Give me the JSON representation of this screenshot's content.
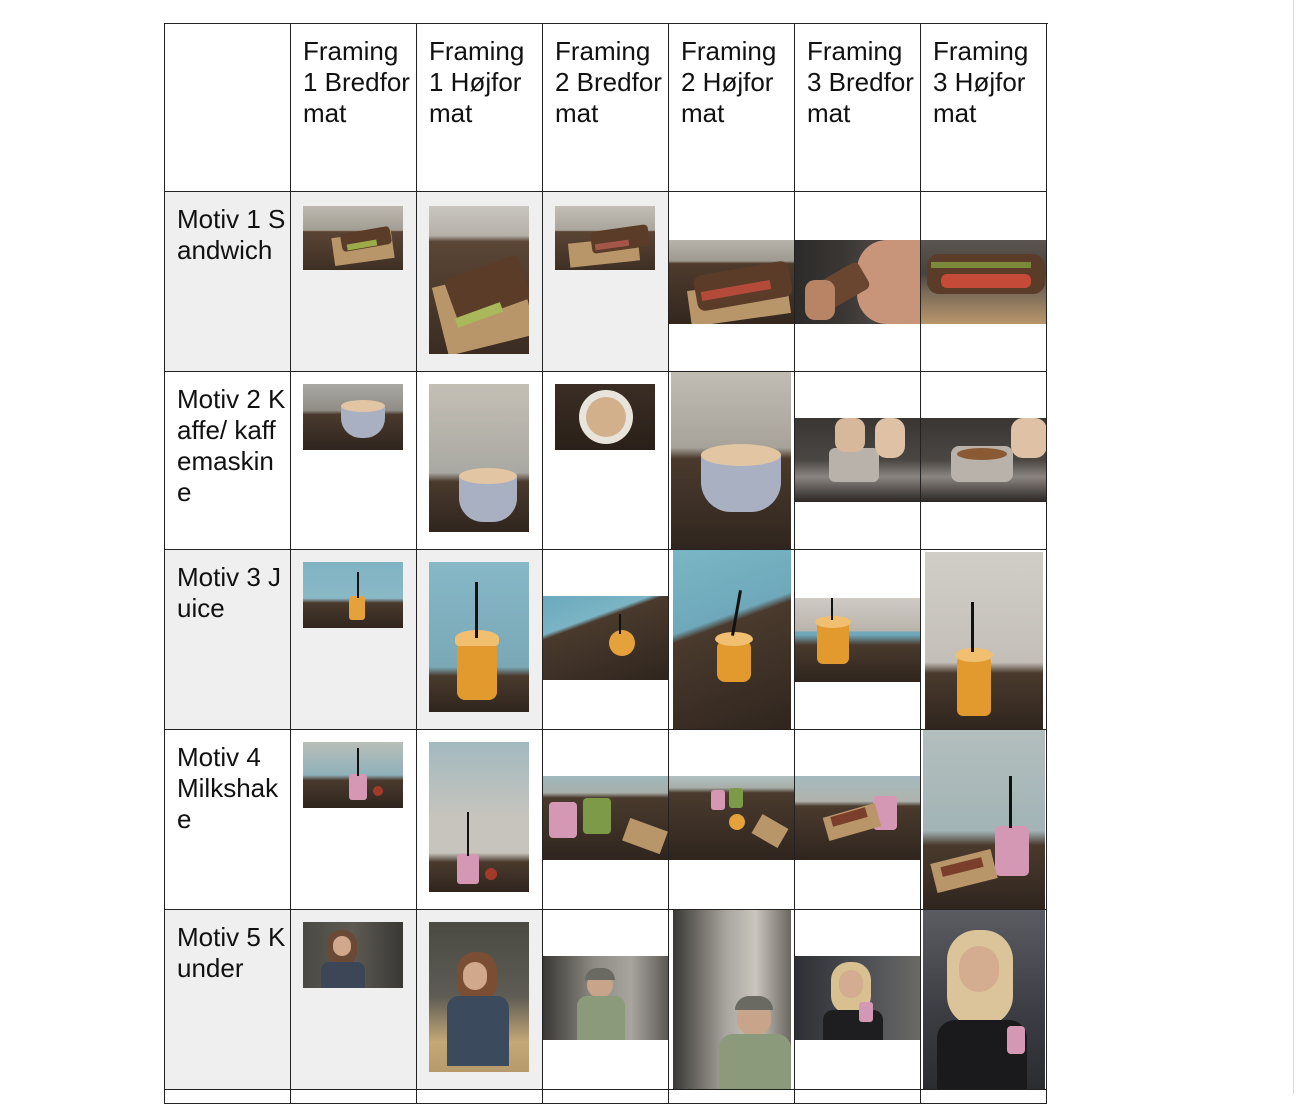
{
  "table": {
    "header_top_left": "",
    "headers": [
      "Framing 1 Bredformat",
      "Framing 1 Højformat",
      "Framing 2 Bredformat",
      "Framing 2 Højformat",
      "Framing 3 Bredformat",
      "Framing 3 Højformat"
    ],
    "rows": [
      {
        "label": "Motiv 1 Sandwich",
        "photos": [
          "sandwich-on-paper",
          "sandwich-on-paper",
          "sandwich-on-paper",
          "sandwich-closeup",
          "woman-eating-sandwich",
          "sandwich-closeup"
        ]
      },
      {
        "label": "Motiv 2 Kaffe/ kaffemaskine",
        "photos": [
          "coffee-cup",
          "coffee-cup",
          "coffee-top-view",
          "coffee-cup",
          "espresso-machine",
          "espresso-machine"
        ]
      },
      {
        "label": "Motiv 3 Juice",
        "photos": [
          "juice-cup",
          "juice-cup",
          "juice-cup",
          "juice-cup",
          "juice-cup",
          "juice-cup"
        ]
      },
      {
        "label": "Motiv 4 Milkshake",
        "photos": [
          "milkshake",
          "milkshake",
          "two-smoothies",
          "drinks-on-table",
          "milkshake-sandwich",
          "milkshake-sandwich"
        ]
      },
      {
        "label": "Motiv 5 Kunder",
        "photos": [
          "customer-woman",
          "customer-woman",
          "customer-talking",
          "customer-eating",
          "customer-drinking",
          "customer-drinking"
        ]
      },
      {
        "label": "",
        "photos": [
          "",
          "",
          "",
          "",
          "",
          ""
        ]
      }
    ]
  }
}
